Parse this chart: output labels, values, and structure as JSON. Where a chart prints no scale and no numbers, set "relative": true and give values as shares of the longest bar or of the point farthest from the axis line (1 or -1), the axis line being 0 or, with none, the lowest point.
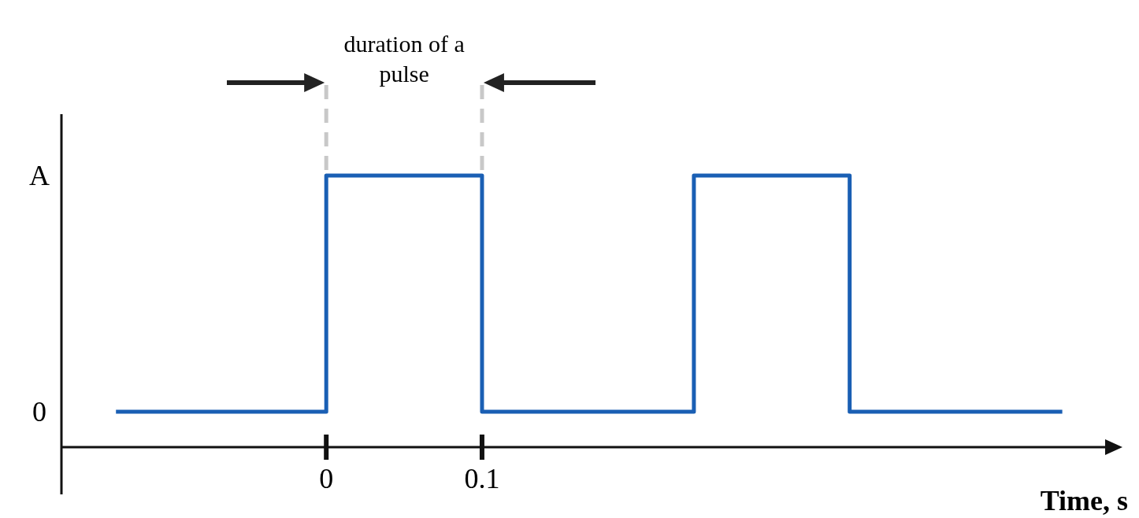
{
  "chart_data": {
    "type": "step",
    "xlabel": "Time, s",
    "annotations": [
      "duration of a pulse",
      "0",
      "A"
    ],
    "x": [
      -0.135,
      0,
      0.1,
      0.236,
      0.336,
      0.4725
    ],
    "series": [
      {
        "color": "#1a5fb4",
        "values": [
          0,
          1,
          0,
          1,
          0,
          0
        ]
      }
    ],
    "xlim": [
      -0.17,
      0.5
    ],
    "relative": true,
    "xticks": [
      0,
      0.1
    ]
  }
}
